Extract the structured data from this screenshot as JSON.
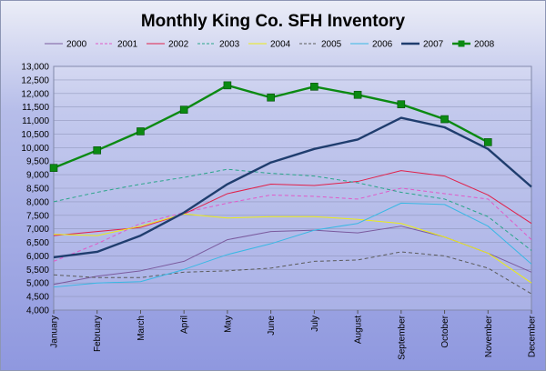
{
  "chart_data": {
    "type": "line",
    "title": "Monthly King Co. SFH Inventory",
    "xlabel": "",
    "ylabel": "",
    "categories": [
      "January",
      "February",
      "March",
      "April",
      "May",
      "June",
      "July",
      "August",
      "September",
      "October",
      "November",
      "December"
    ],
    "ylim": [
      4000,
      13000
    ],
    "ytick_step": 500,
    "ytick_labels": [
      "4,000",
      "4,500",
      "5,000",
      "5,500",
      "6,000",
      "6,500",
      "7,000",
      "7,500",
      "8,000",
      "8,500",
      "9,000",
      "9,500",
      "10,000",
      "10,500",
      "11,000",
      "11,500",
      "12,000",
      "12,500",
      "13,000"
    ],
    "grid": true,
    "legend": "top",
    "series": [
      {
        "name": "2000",
        "color": "#7a5a9e",
        "dash": "solid",
        "marker": "none",
        "values": [
          4950,
          5250,
          5450,
          5800,
          6600,
          6900,
          6950,
          6850,
          7100,
          6700,
          6100,
          5400
        ]
      },
      {
        "name": "2001",
        "color": "#e05ac9",
        "dash": "dash",
        "marker": "none",
        "values": [
          5800,
          6450,
          7200,
          7600,
          7950,
          8250,
          8200,
          8100,
          8500,
          8300,
          8100,
          6600
        ]
      },
      {
        "name": "2002",
        "color": "#e0204a",
        "dash": "solid",
        "marker": "none",
        "values": [
          6750,
          6900,
          7050,
          7550,
          8300,
          8650,
          8600,
          8750,
          9150,
          8950,
          8250,
          7200
        ]
      },
      {
        "name": "2003",
        "color": "#2aa58a",
        "dash": "dash",
        "marker": "none",
        "values": [
          8000,
          8350,
          8650,
          8900,
          9200,
          9050,
          8950,
          8700,
          8350,
          8100,
          7450,
          6200
        ]
      },
      {
        "name": "2004",
        "color": "#ecec16",
        "dash": "solid",
        "marker": "none",
        "values": [
          6800,
          6750,
          7100,
          7550,
          7400,
          7450,
          7450,
          7350,
          7200,
          6700,
          6100,
          5000
        ]
      },
      {
        "name": "2005",
        "color": "#5a5a5a",
        "dash": "dash",
        "marker": "none",
        "values": [
          5300,
          5200,
          5200,
          5400,
          5450,
          5550,
          5800,
          5850,
          6150,
          6000,
          5550,
          4600
        ]
      },
      {
        "name": "2006",
        "color": "#38b8e4",
        "dash": "solid",
        "marker": "none",
        "values": [
          4850,
          5000,
          5050,
          5500,
          6050,
          6450,
          6950,
          7200,
          7950,
          7900,
          7100,
          5700
        ]
      },
      {
        "name": "2007",
        "color": "#1f3d6e",
        "dash": "solid",
        "marker": "none",
        "values": [
          5950,
          6150,
          6750,
          7600,
          8650,
          9450,
          9950,
          10300,
          11100,
          10750,
          9950,
          8550
        ]
      },
      {
        "name": "2008",
        "color": "#0b8a12",
        "dash": "solid",
        "marker": "square",
        "values": [
          9250,
          9900,
          10600,
          11400,
          12300,
          11850,
          12250,
          11950,
          11600,
          11050,
          10200,
          null
        ]
      }
    ]
  }
}
